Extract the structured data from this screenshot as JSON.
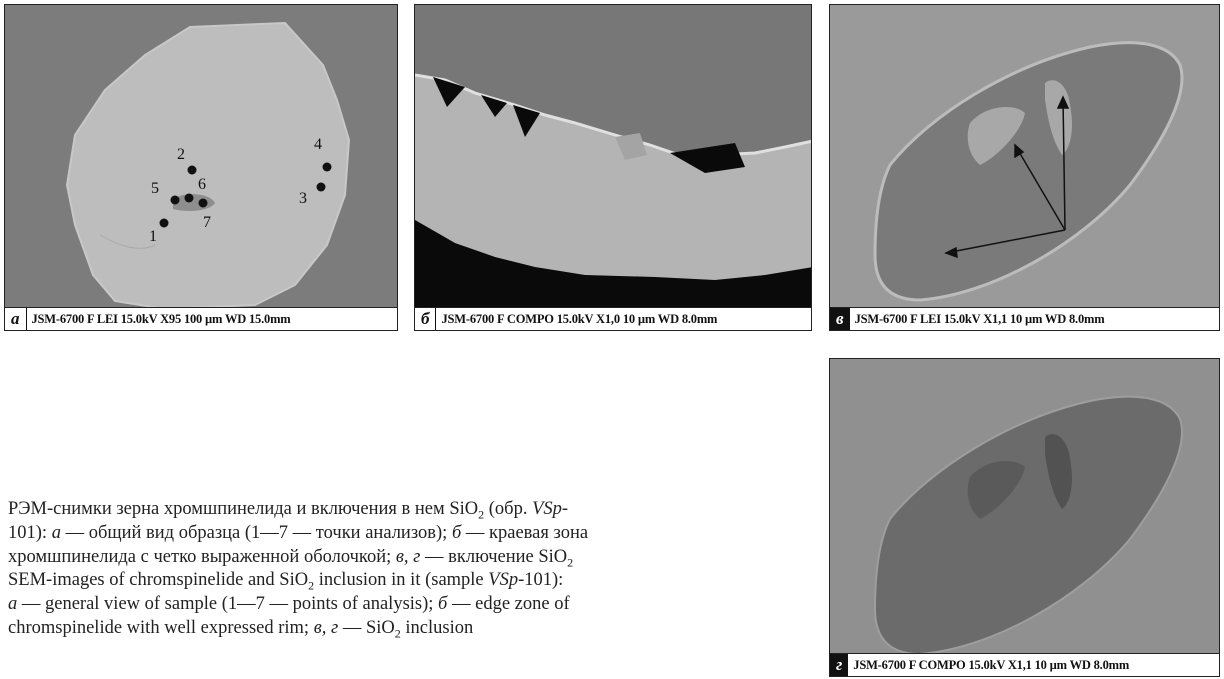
{
  "panels": {
    "a": {
      "letter": "а",
      "meta": "JSM-6700 F  LEI 15.0kV  X95 100 µm   WD 15.0mm",
      "points": [
        "1",
        "2",
        "3",
        "4",
        "5",
        "6",
        "7"
      ]
    },
    "b": {
      "letter": "б",
      "meta": "JSM-6700 F  COMPO 15.0kV  X1,0 10 µm  WD 8.0mm"
    },
    "c": {
      "letter": "в",
      "meta": "JSM-6700 F  LEI 15.0kV  X1,1   10 µm  WD 8.0mm"
    },
    "d": {
      "letter": "г",
      "meta": "JSM-6700 F COMPO 15.0kV  X1,1  10 µm  WD 8.0mm"
    }
  },
  "caption": {
    "ru": {
      "l1_a": "РЭМ-снимки зерна хромшпинелида и включения в нем SiO",
      "l1_b": " (обр. ",
      "l1_c": "VSp",
      "l1_d": "-",
      "l2_a": "101): ",
      "l2_b": "а",
      "l2_c": " — общий вид образца (1—7 — точки анализов); ",
      "l2_d": "б",
      "l2_e": " — краевая зона",
      "l3_a": "хромшпинелида с четко выраженной оболочкой; ",
      "l3_b": "в, г",
      "l3_c": " — включение SiO"
    },
    "en": {
      "l1_a": "SEM-images of chromspinelide and SiO",
      "l1_b": " inclusion in it (sample ",
      "l1_c": "VSp",
      "l1_d": "-101):",
      "l2_a": "а",
      "l2_b": " — general view of sample (1—7 — points of analysis); ",
      "l2_c": "б",
      "l2_d": " — edge zone of",
      "l3_a": "chromspinelide with well expressed rim; ",
      "l3_b": "в, г",
      "l3_c": " — SiO",
      "l3_d": " inclusion"
    },
    "sub2": "2"
  }
}
